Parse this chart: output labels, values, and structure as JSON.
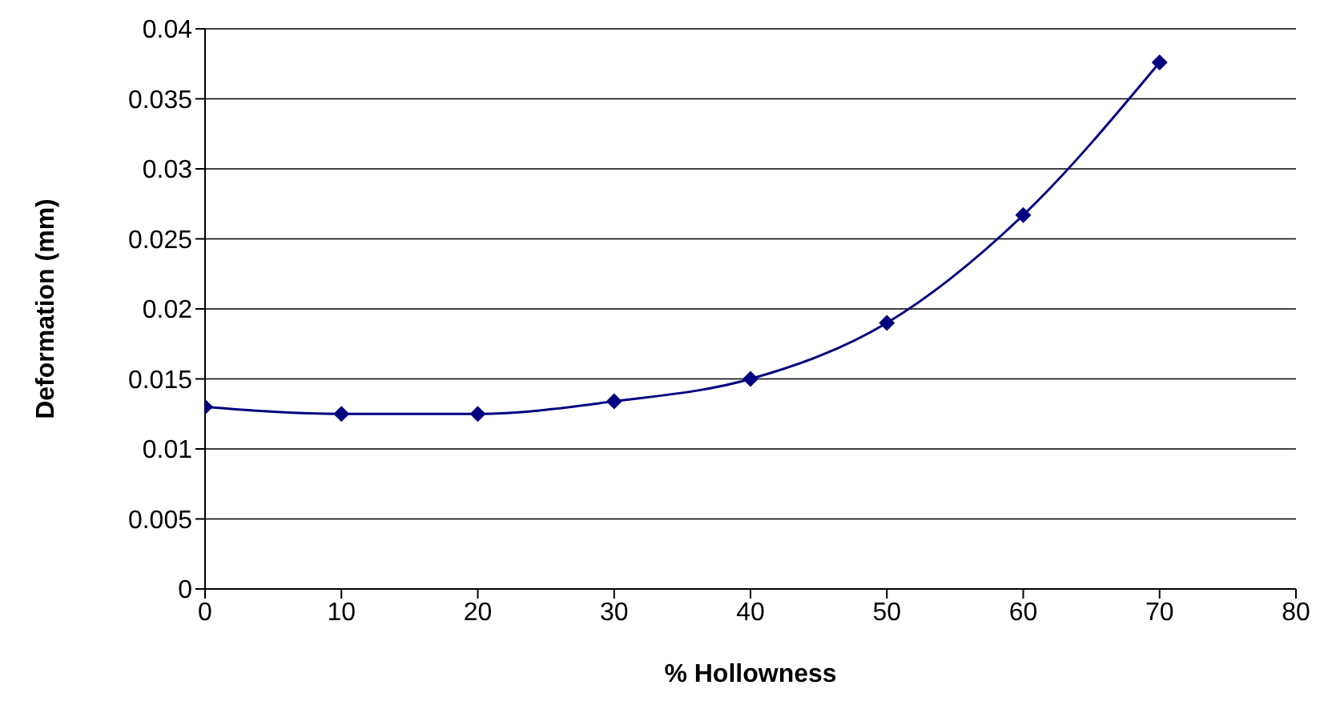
{
  "chart_data": {
    "type": "line",
    "xlabel": "% Hollowness",
    "ylabel": "Deformation (mm)",
    "x": [
      0,
      10,
      20,
      30,
      40,
      50,
      60,
      70
    ],
    "series": [
      {
        "color": "#000080",
        "values": [
          0.013,
          0.0125,
          0.0125,
          0.0134,
          0.015,
          0.019,
          0.0267,
          0.0376
        ]
      }
    ],
    "xlim": [
      0,
      80
    ],
    "xticks": [
      0,
      10,
      20,
      30,
      40,
      50,
      60,
      70,
      80
    ],
    "ylim": [
      0,
      0.04
    ],
    "yticks": [
      0,
      0.005,
      0.01,
      0.015,
      0.02,
      0.025,
      0.03,
      0.035,
      0.04
    ],
    "grid": "y",
    "marker": "diamond",
    "line_style": "solid",
    "legend": false
  }
}
